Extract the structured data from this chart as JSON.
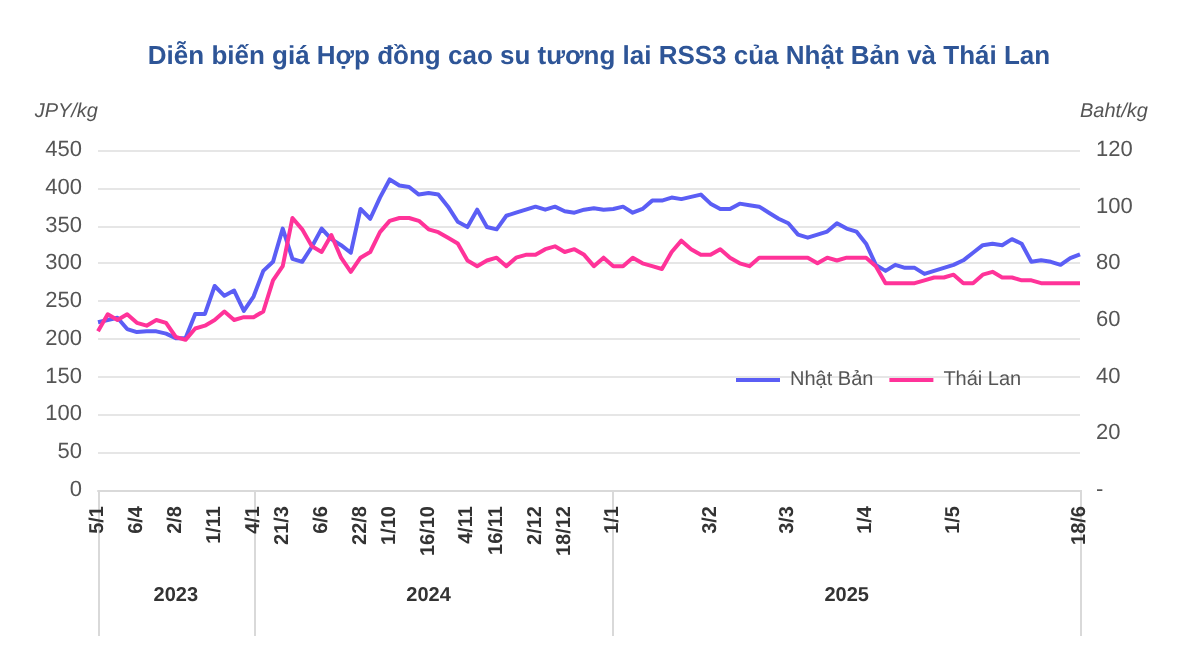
{
  "chart_data": {
    "type": "line",
    "title": "Diễn biến giá Hợp đồng cao su tương lai RSS3 của Nhật Bản và Thái Lan",
    "ylabel": "JPY/kg",
    "y2label": "Baht/kg",
    "categories": [
      "5/1",
      null,
      null,
      null,
      "6/4",
      null,
      null,
      null,
      "2/8",
      null,
      null,
      null,
      "1/11",
      null,
      null,
      null,
      "4/1",
      null,
      null,
      "21/3",
      null,
      null,
      null,
      "6/6",
      null,
      null,
      null,
      "22/8",
      null,
      null,
      "1/10",
      null,
      null,
      null,
      "16/10",
      null,
      null,
      null,
      "4/11",
      null,
      null,
      "16/11",
      null,
      null,
      null,
      "2/12",
      null,
      null,
      "18/12",
      null,
      null,
      null,
      null,
      "1/1",
      null,
      null,
      null,
      null,
      null,
      null,
      null,
      null,
      null,
      "3/2",
      null,
      null,
      null,
      null,
      null,
      null,
      null,
      "3/3",
      null,
      null,
      null,
      null,
      null,
      null,
      null,
      "1/4",
      null,
      null,
      null,
      null,
      null,
      null,
      null,
      null,
      "1/5",
      null,
      null,
      null,
      null,
      null,
      null,
      null,
      null,
      null,
      null,
      null,
      null,
      "18/6"
    ],
    "series": [
      {
        "name": "Nhật Bản",
        "color": "#5b5ef5",
        "values": [
          222,
          225,
          228,
          213,
          209,
          210,
          210,
          207,
          201,
          201,
          233,
          233,
          270,
          257,
          264,
          237,
          256,
          290,
          302,
          346,
          306,
          302,
          322,
          346,
          332,
          324,
          314,
          372,
          359,
          387,
          411,
          403,
          401,
          391,
          393,
          391,
          375,
          355,
          348,
          371,
          348,
          345,
          363,
          367,
          371,
          375,
          371,
          375,
          369,
          367,
          371,
          373,
          371,
          372,
          375,
          367,
          372,
          383,
          383,
          387,
          385,
          388,
          391,
          379,
          372,
          372,
          379,
          377,
          375,
          367,
          359,
          353,
          338,
          334,
          338,
          342,
          353,
          346,
          342,
          326,
          298,
          290,
          298,
          294,
          294,
          286,
          290,
          294,
          298,
          304,
          314,
          324,
          326,
          324,
          332,
          326,
          302,
          304,
          302,
          298,
          307,
          312
        ]
      },
      {
        "name": "Thái Lan",
        "color": "#ff3399",
        "axis": "y2",
        "values": [
          56,
          62,
          60,
          62,
          59,
          58,
          60,
          59,
          54,
          53,
          57,
          58,
          60,
          63,
          60,
          61,
          61,
          63,
          74,
          79,
          96,
          92,
          86,
          84,
          90,
          82,
          77,
          82,
          84,
          91,
          95,
          96,
          96,
          95,
          92,
          91,
          89,
          87,
          81,
          79,
          81,
          82,
          79,
          82,
          83,
          83,
          85,
          86,
          84,
          85,
          83,
          79,
          82,
          79,
          79,
          82,
          80,
          79,
          78,
          84,
          88,
          85,
          83,
          83,
          85,
          82,
          80,
          79,
          82,
          82,
          82,
          82,
          82,
          82,
          80,
          82,
          81,
          82,
          82,
          82,
          79,
          73,
          73,
          73,
          73,
          74,
          75,
          75,
          76,
          73,
          73,
          76,
          77,
          75,
          75,
          74,
          74,
          73,
          73,
          73,
          73,
          73
        ]
      }
    ],
    "ylim": [
      0,
      450
    ],
    "yticks": [
      0,
      50,
      100,
      150,
      200,
      250,
      300,
      350,
      400,
      450
    ],
    "y2lim": [
      0,
      120
    ],
    "y2ticks": [
      {
        "value": 0,
        "label": "-"
      },
      20,
      40,
      60,
      80,
      100,
      120
    ],
    "grid": "y",
    "legend": "right",
    "marker": "none",
    "line_style": "solid",
    "annotations": [
      "2023",
      "2024",
      "2025"
    ]
  }
}
